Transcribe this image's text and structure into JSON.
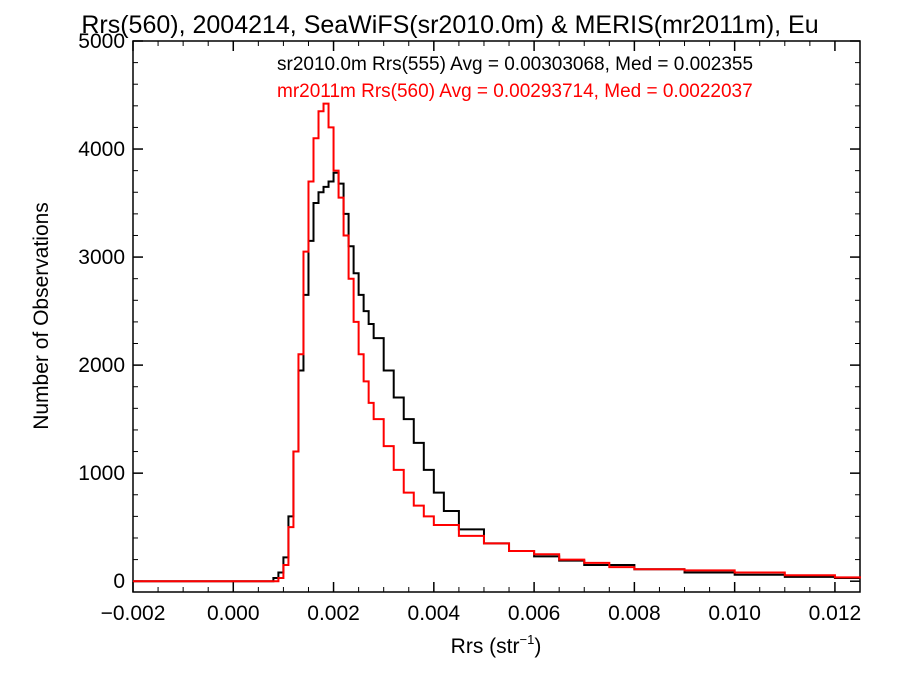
{
  "chart_data": {
    "type": "line",
    "title": "Rrs(560), 2004214, SeaWiFS(sr2010.0m) & MERIS(mr2011m), Eu",
    "xlabel_main": "Rrs (str",
    "xlabel_sup": "−1",
    "xlabel_close": ")",
    "ylabel": "Number of Observations",
    "xlim": [
      -0.002,
      0.0125
    ],
    "ylim": [
      -100,
      5000
    ],
    "x_ticks": [
      -0.002,
      0.0,
      0.002,
      0.004,
      0.006,
      0.008,
      0.01,
      0.012
    ],
    "x_tick_labels": [
      "−0.002",
      "0.000",
      "0.002",
      "0.004",
      "0.006",
      "0.008",
      "0.010",
      "0.012"
    ],
    "y_ticks": [
      0,
      1000,
      2000,
      3000,
      4000,
      5000
    ],
    "y_tick_labels": [
      "0",
      "1000",
      "2000",
      "3000",
      "4000",
      "5000"
    ],
    "series": [
      {
        "name": "sr2010.0m Rrs(555) Avg = 0.00303068, Med = 0.002355",
        "color": "#000000",
        "x": [
          -0.002,
          0.0007,
          0.0008,
          0.0009,
          0.001,
          0.0011,
          0.0012,
          0.0013,
          0.0014,
          0.0015,
          0.0016,
          0.0017,
          0.0018,
          0.0019,
          0.002,
          0.0021,
          0.0022,
          0.0023,
          0.0024,
          0.0025,
          0.0026,
          0.0027,
          0.0028,
          0.003,
          0.0032,
          0.0034,
          0.0036,
          0.0038,
          0.004,
          0.0042,
          0.0045,
          0.005,
          0.0055,
          0.006,
          0.0065,
          0.007,
          0.008,
          0.009,
          0.01,
          0.011,
          0.012,
          0.0125
        ],
        "y": [
          0,
          0,
          30,
          80,
          220,
          600,
          1200,
          1950,
          2650,
          3150,
          3500,
          3600,
          3650,
          3700,
          3780,
          3680,
          3400,
          3100,
          2850,
          2650,
          2500,
          2380,
          2250,
          1950,
          1700,
          1500,
          1280,
          1030,
          820,
          650,
          480,
          350,
          280,
          230,
          190,
          150,
          110,
          80,
          60,
          40,
          30,
          25
        ]
      },
      {
        "name": "mr2011m Rrs(560) Avg = 0.00293714, Med = 0.0022037",
        "color": "#ff0000",
        "x": [
          -0.002,
          0.0008,
          0.0009,
          0.001,
          0.0011,
          0.0012,
          0.0013,
          0.0014,
          0.0015,
          0.0016,
          0.0017,
          0.0018,
          0.0019,
          0.002,
          0.0021,
          0.0022,
          0.0023,
          0.0024,
          0.0025,
          0.0026,
          0.0027,
          0.0028,
          0.003,
          0.0032,
          0.0034,
          0.0036,
          0.0038,
          0.004,
          0.0045,
          0.005,
          0.0055,
          0.006,
          0.0065,
          0.007,
          0.0075,
          0.008,
          0.009,
          0.01,
          0.011,
          0.012,
          0.0125
        ],
        "y": [
          0,
          0,
          30,
          150,
          500,
          1200,
          2100,
          3050,
          3700,
          4100,
          4350,
          4420,
          4200,
          3800,
          3550,
          3200,
          2800,
          2400,
          2100,
          1850,
          1650,
          1500,
          1250,
          1030,
          820,
          700,
          600,
          520,
          420,
          350,
          280,
          250,
          200,
          170,
          130,
          110,
          100,
          80,
          55,
          35,
          25
        ]
      }
    ]
  }
}
